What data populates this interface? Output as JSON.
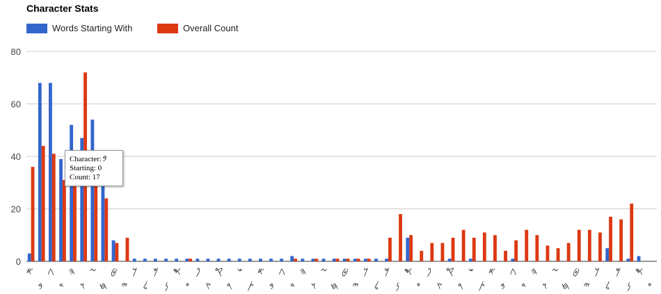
{
  "chart_data": {
    "type": "bar",
    "title": "Character Stats",
    "xlabel": "",
    "ylabel": "",
    "ylim": [
      0,
      80
    ],
    "yticks": [
      "0",
      "20",
      "40",
      "60",
      "80"
    ],
    "grid": true,
    "legend_position": "top-left",
    "categories": [
      "𐤀",
      "𐤁",
      "𐤂",
      "𐤃",
      "𐤄",
      "𐤅",
      "𐤆",
      "𐤇",
      "𐤈",
      "𐤉",
      "𐤊",
      "𐤋",
      "𐤌",
      "𐤍",
      "𐤎",
      "𐤏",
      "𐤐",
      "𐤑",
      "𐤒",
      "𐤓",
      "𐤔",
      "𐤕",
      "𐤀",
      "𐤁",
      "𐤂",
      "𐤃",
      "𐤄",
      "𐤅",
      "𐤆",
      "𐤇",
      "𐤈",
      "𐤉",
      "𐤊",
      "𐤋",
      "𐤌",
      "𐤍",
      "𐤎",
      "𐤏",
      "𐤐",
      "𐤑",
      "𐤒",
      "𐤓",
      "𐤔",
      "𐤕",
      "𐤀",
      "𐤁",
      "𐤂",
      "𐤃",
      "𐤄",
      "𐤅",
      "𐤆",
      "𐤇",
      "𐤈",
      "𐤉",
      "𐤊",
      "𐤋",
      "𐤌",
      "𐤍",
      "𐤎",
      "𐤏"
    ],
    "series": [
      {
        "name": "Words Starting With",
        "color": "#3366cc",
        "values": [
          3,
          68,
          68,
          39,
          52,
          47,
          54,
          31,
          8,
          0,
          1,
          1,
          1,
          1,
          1,
          1,
          1,
          1,
          1,
          1,
          1,
          1,
          1,
          1,
          1,
          2,
          1,
          1,
          1,
          1,
          1,
          1,
          1,
          1,
          1,
          0,
          9,
          0,
          0,
          0,
          1,
          0,
          1,
          0,
          0,
          0,
          1,
          0,
          0,
          0,
          0,
          0,
          0,
          0,
          0,
          5,
          0,
          1,
          2,
          0
        ]
      },
      {
        "name": "Overall Count",
        "color": "#dc3912",
        "values": [
          36,
          44,
          41,
          31,
          34,
          72,
          34,
          24,
          7,
          9,
          0,
          0,
          0,
          0,
          0,
          1,
          0,
          0,
          0,
          0,
          0,
          0,
          0,
          0,
          0,
          1,
          0,
          1,
          0,
          1,
          1,
          1,
          1,
          0,
          9,
          18,
          10,
          4,
          7,
          7,
          9,
          12,
          9,
          11,
          10,
          4,
          8,
          12,
          10,
          6,
          5,
          7,
          12,
          12,
          11,
          17,
          16,
          22,
          0,
          0
        ]
      }
    ]
  },
  "tooltip": {
    "character_label": "Character:",
    "starting_label": "Starting: 0",
    "count_label": "Count: 17"
  }
}
